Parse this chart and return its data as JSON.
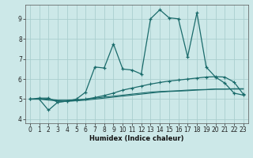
{
  "background_color": "#cce8e8",
  "grid_color": "#aacece",
  "line_color": "#1a6b6b",
  "xlabel": "Humidex (Indice chaleur)",
  "xlim": [
    -0.5,
    23.5
  ],
  "ylim": [
    3.8,
    9.7
  ],
  "yticks": [
    4,
    5,
    6,
    7,
    8,
    9
  ],
  "xticks": [
    0,
    1,
    2,
    3,
    4,
    5,
    6,
    7,
    8,
    9,
    10,
    11,
    12,
    13,
    14,
    15,
    16,
    17,
    18,
    19,
    20,
    21,
    22,
    23
  ],
  "main_line": {
    "x": [
      0,
      1,
      2,
      3,
      4,
      5,
      6,
      7,
      8,
      9,
      10,
      11,
      12,
      13,
      14,
      15,
      16,
      17,
      18,
      19,
      20,
      21,
      22,
      23
    ],
    "y": [
      5.0,
      5.05,
      5.05,
      4.85,
      4.9,
      5.0,
      5.35,
      6.6,
      6.55,
      7.75,
      6.5,
      6.45,
      6.25,
      9.0,
      9.45,
      9.05,
      9.0,
      7.1,
      9.3,
      6.6,
      6.1,
      5.8,
      5.3,
      5.2
    ]
  },
  "trend_line1": {
    "x": [
      0,
      1,
      2,
      3,
      4,
      5,
      6,
      7,
      8,
      9,
      10,
      11,
      12,
      13,
      14,
      15,
      16,
      17,
      18,
      19,
      20,
      21,
      22,
      23
    ],
    "y": [
      5.0,
      5.0,
      5.0,
      4.95,
      4.95,
      4.97,
      5.0,
      5.05,
      5.1,
      5.15,
      5.2,
      5.25,
      5.3,
      5.35,
      5.38,
      5.4,
      5.42,
      5.45,
      5.47,
      5.48,
      5.5,
      5.5,
      5.5,
      5.5
    ]
  },
  "trend_line2": {
    "x": [
      0,
      1,
      2,
      3,
      4,
      5,
      6,
      7,
      8,
      9,
      10,
      11,
      12,
      13,
      14,
      15,
      16,
      17,
      18,
      19,
      20,
      21,
      22,
      23
    ],
    "y": [
      5.0,
      5.0,
      4.95,
      4.92,
      4.9,
      4.92,
      4.95,
      5.0,
      5.05,
      5.1,
      5.15,
      5.2,
      5.25,
      5.3,
      5.35,
      5.38,
      5.4,
      5.42,
      5.45,
      5.47,
      5.5,
      5.5,
      5.52,
      5.52
    ]
  },
  "trend_line3": {
    "x": [
      0,
      1,
      2,
      3,
      4,
      5,
      6,
      7,
      8,
      9,
      10,
      11,
      12,
      13,
      14,
      15,
      16,
      17,
      18,
      19,
      20,
      21,
      22,
      23
    ],
    "y": [
      5.0,
      5.0,
      4.45,
      4.85,
      4.9,
      4.93,
      5.0,
      5.08,
      5.18,
      5.3,
      5.45,
      5.55,
      5.65,
      5.75,
      5.83,
      5.9,
      5.95,
      6.0,
      6.05,
      6.1,
      6.12,
      6.1,
      5.85,
      5.25
    ]
  }
}
